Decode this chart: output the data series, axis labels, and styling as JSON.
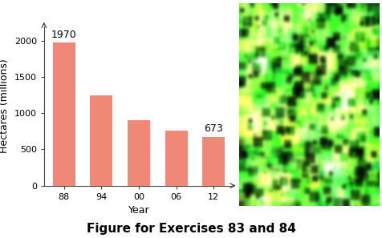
{
  "categories": [
    "88",
    "94",
    "00",
    "06",
    "12"
  ],
  "values": [
    1970,
    1250,
    900,
    760,
    673
  ],
  "bar_color": "#F08878",
  "bar_annotations_first": "1970",
  "bar_annotations_last": "673",
  "xlabel": "Year",
  "ylabel": "Hectares (millions)",
  "ylim": [
    0,
    2200
  ],
  "yticks": [
    0,
    500,
    1000,
    1500,
    2000
  ],
  "panel_bg_color": "#d8e4f0",
  "plot_bg_color": "#ffffff",
  "outer_bg_color": "#ffffff",
  "caption": "Figure for Exercises 83 and 84",
  "caption_fontsize": 11,
  "axis_label_fontsize": 9,
  "tick_fontsize": 8,
  "annot_fontsize": 9
}
